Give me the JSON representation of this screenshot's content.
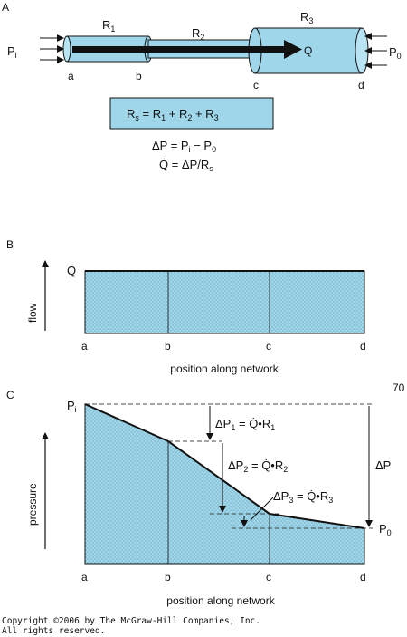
{
  "panelA": {
    "label": "A",
    "r1": "R",
    "r1_sub": "1",
    "r2": "R",
    "r2_sub": "2",
    "r3": "R",
    "r3_sub": "3",
    "pi": "P",
    "pi_sub": "i",
    "p0": "P",
    "p0_sub": "0",
    "q": "Q",
    "points": [
      "a",
      "b",
      "c",
      "d"
    ],
    "formula_box": {
      "lhs": "R",
      "lhs_sub": "s",
      "mid": " = R",
      "s1": "1",
      "p1": " + R",
      "s2": "2",
      "p2": " + R",
      "s3": "3"
    },
    "eq1": {
      "a": "ΔP = P",
      "s1": "i",
      "b": " − P",
      "s2": "0"
    },
    "eq2": {
      "a": "Q̇ = ΔP/R",
      "s1": "s"
    }
  },
  "panelB": {
    "label": "B",
    "ylabel": "flow",
    "qdot": "Q̇",
    "xticks": [
      "a",
      "b",
      "c",
      "d"
    ],
    "xlabel": "position along network"
  },
  "panelC": {
    "label": "C",
    "page_num": "70",
    "ylabel": "pressure",
    "pi": "P",
    "pi_sub": "i",
    "p0": "P",
    "p0_sub": "0",
    "dp": "ΔP",
    "dp1": {
      "a": "ΔP",
      "s": "1",
      "b": " = Q̇•R",
      "s2": "1"
    },
    "dp2": {
      "a": "ΔP",
      "s": "2",
      "b": " = Q̇•R",
      "s2": "2"
    },
    "dp3": {
      "a": "ΔP",
      "s": "3",
      "b": " = Q̇•R",
      "s2": "3"
    },
    "xticks": [
      "a",
      "b",
      "c",
      "d"
    ],
    "xlabel": "position along network"
  },
  "copyright": {
    "line1": "Copyright ©2006 by The McGraw-Hill Companies, Inc.",
    "line2": "All rights reserved."
  },
  "colors": {
    "fill": "#9fd6ea",
    "dots": "#4a7f97",
    "line": "#111111"
  }
}
